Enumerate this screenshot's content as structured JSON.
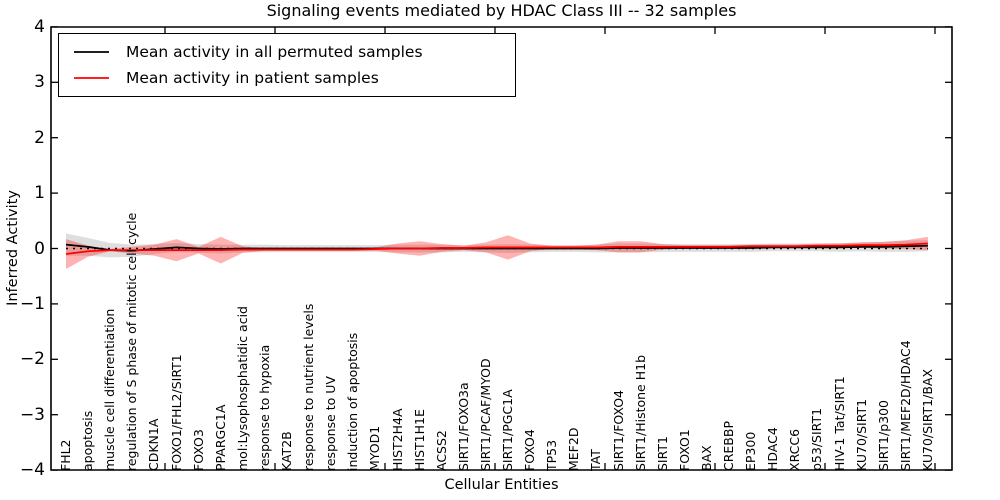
{
  "title": "Signaling events mediated by HDAC Class III -- 32 samples",
  "axes": {
    "y_label": "Inferred Activity",
    "x_label": "Cellular Entities",
    "y_ticks": [
      {
        "label": "4",
        "value": 4
      },
      {
        "label": "3",
        "value": 3
      },
      {
        "label": "2",
        "value": 2
      },
      {
        "label": "1",
        "value": 1
      },
      {
        "label": "0",
        "value": 0
      },
      {
        "label": "−1",
        "value": -1
      },
      {
        "label": "−2",
        "value": -2
      },
      {
        "label": "−3",
        "value": -3
      },
      {
        "label": "−4",
        "value": -4
      }
    ]
  },
  "colors": {
    "black_line": "#000000",
    "red_line": "#ff0000",
    "gray_band": "rgba(0,0,0,0.13)",
    "red_band": "rgba(255,0,0,0.30)",
    "spine": "#000000",
    "background": "#ffffff"
  },
  "chart_data": {
    "type": "line",
    "title": "Signaling events mediated by HDAC Class III -- 32 samples",
    "xlabel": "Cellular Entities",
    "ylabel": "Inferred Activity",
    "ylim": [
      -4,
      4
    ],
    "grid": false,
    "legend_position": "upper left",
    "zero_line": {
      "style": "dotted",
      "color": "#000000",
      "y": 0
    },
    "categories": [
      "FHL2",
      "apoptosis",
      "muscle cell differentiation",
      "regulation of S phase of mitotic cell cycle",
      "CDKN1A",
      "FOXO1/FHL2/SIRT1",
      "FOXO3",
      "PPARGC1A",
      "mol:Lysophosphatidic acid",
      "response to hypoxia",
      "KAT2B",
      "response to nutrient levels",
      "response to UV",
      "induction of apoptosis",
      "MYOD1",
      "HIST2H4A",
      "HIST1H1E",
      "ACSS2",
      "SIRT1/FOXO3a",
      "SIRT1/PCAF/MYOD",
      "SIRT1/PGC1A",
      "FOXO4",
      "TP53",
      "MEF2D",
      "TAT",
      "SIRT1/FOXO4",
      "SIRT1/Histone H1b",
      "SIRT1",
      "FOXO1",
      "BAX",
      "CREBBP",
      "EP300",
      "HDAC4",
      "XRCC6",
      "p53/SIRT1",
      "HIV-1 Tat/SIRT1",
      "KU70/SIRT1",
      "SIRT1/p300",
      "SIRT1/MEF2D/HDAC4",
      "KU70/SIRT1/BAX"
    ],
    "series": [
      {
        "name": "Mean activity in all permuted samples",
        "color": "#000000",
        "style": "solid",
        "band_color": "rgba(0,0,0,0.13)",
        "values": [
          0.07,
          0.03,
          -0.03,
          -0.04,
          -0.01,
          0.02,
          0.0,
          -0.01,
          0.0,
          0.0,
          0.0,
          0.0,
          0.0,
          0.0,
          0.0,
          0.0,
          0.0,
          0.0,
          0.0,
          0.0,
          0.0,
          0.0,
          0.0,
          0.0,
          0.0,
          0.01,
          0.01,
          0.01,
          0.01,
          0.01,
          0.01,
          0.01,
          0.02,
          0.02,
          0.02,
          0.02,
          0.03,
          0.03,
          0.04,
          0.05
        ],
        "band_halfwidth": [
          0.2,
          0.16,
          0.13,
          0.11,
          0.09,
          0.08,
          0.08,
          0.08,
          0.07,
          0.07,
          0.06,
          0.06,
          0.06,
          0.06,
          0.06,
          0.07,
          0.07,
          0.07,
          0.06,
          0.07,
          0.08,
          0.07,
          0.06,
          0.06,
          0.07,
          0.08,
          0.08,
          0.07,
          0.07,
          0.07,
          0.07,
          0.07,
          0.07,
          0.07,
          0.07,
          0.08,
          0.08,
          0.09,
          0.1,
          0.1
        ]
      },
      {
        "name": "Mean activity in patient samples",
        "color": "#ff0000",
        "style": "solid",
        "band_color": "rgba(255,0,0,0.30)",
        "values": [
          -0.1,
          -0.05,
          -0.03,
          -0.03,
          -0.03,
          -0.03,
          -0.03,
          -0.03,
          -0.02,
          -0.02,
          -0.02,
          -0.02,
          -0.02,
          -0.02,
          -0.01,
          0.0,
          0.0,
          0.01,
          0.01,
          0.02,
          0.02,
          0.02,
          0.02,
          0.02,
          0.02,
          0.03,
          0.03,
          0.03,
          0.03,
          0.03,
          0.03,
          0.04,
          0.04,
          0.04,
          0.05,
          0.05,
          0.06,
          0.06,
          0.07,
          0.09
        ],
        "band_halfwidth": [
          0.27,
          0.1,
          0.02,
          0.06,
          0.1,
          0.2,
          0.06,
          0.24,
          0.06,
          0.02,
          0.02,
          0.02,
          0.02,
          0.02,
          0.03,
          0.09,
          0.13,
          0.07,
          0.04,
          0.09,
          0.22,
          0.07,
          0.03,
          0.03,
          0.05,
          0.1,
          0.1,
          0.05,
          0.03,
          0.03,
          0.03,
          0.03,
          0.03,
          0.03,
          0.04,
          0.04,
          0.05,
          0.06,
          0.08,
          0.12
        ]
      }
    ]
  }
}
